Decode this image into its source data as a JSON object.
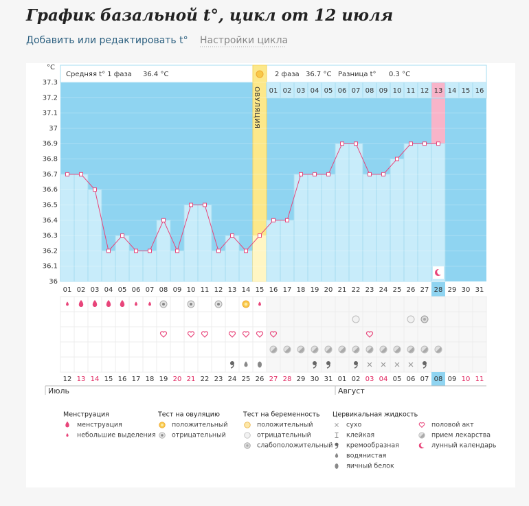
{
  "header": {
    "title": "График базальной t°, цикл от 12 июля",
    "links": [
      "Добавить или редактировать t°",
      "Настройки цикла"
    ]
  },
  "chart": {
    "unit": "°C",
    "ylim": [
      36,
      37.3
    ],
    "yticks": [
      36,
      36.1,
      36.2,
      36.3,
      36.4,
      36.5,
      36.6,
      36.7,
      36.8,
      36.9,
      37,
      37.1,
      37.2,
      37.3
    ],
    "phase1": {
      "label": "Средняя t° 1 фаза",
      "value": "36.4 °C"
    },
    "phase2": {
      "label": "2 фаза",
      "value": "36.7 °C"
    },
    "difference": {
      "label": "Разница t°",
      "value": "0.3 °C"
    },
    "ovulation_label": "ОВУЛЯЦИЯ",
    "ovulation_day": "15",
    "today": "28",
    "cycle_days": [
      "01",
      "02",
      "03",
      "04",
      "05",
      "06",
      "07",
      "08",
      "09",
      "10",
      "11",
      "12",
      "13",
      "14",
      "15",
      "16",
      "17",
      "18",
      "19",
      "20",
      "21",
      "22",
      "23",
      "24",
      "25",
      "26",
      "27",
      "28",
      "29",
      "30",
      "31"
    ],
    "phase2_days": [
      "01",
      "02",
      "03",
      "04",
      "05",
      "06",
      "07",
      "08",
      "09",
      "10",
      "11",
      "12",
      "13",
      "14",
      "15",
      "16"
    ],
    "temperatures": [
      36.7,
      36.7,
      36.6,
      36.2,
      36.3,
      36.2,
      36.2,
      36.4,
      36.2,
      36.5,
      36.5,
      36.2,
      36.3,
      36.2,
      36.3,
      36.4,
      36.4,
      36.7,
      36.7,
      36.7,
      36.9,
      36.9,
      36.7,
      36.7,
      36.8,
      36.9,
      36.9,
      36.9,
      null,
      null,
      null
    ],
    "symbol_rows": [
      [
        "spotting",
        "menstruation",
        "menstruation",
        "menstruation",
        "menstruation",
        "spotting",
        "spotting",
        "ovulation-negative",
        null,
        "ovulation-negative",
        null,
        "ovulation-negative",
        null,
        "ovulation-positive",
        "spotting",
        null,
        null,
        null,
        null,
        null,
        null,
        null,
        null,
        null,
        null,
        null,
        null,
        null,
        null,
        null,
        null
      ],
      [
        null,
        null,
        null,
        null,
        null,
        null,
        null,
        null,
        null,
        null,
        null,
        null,
        null,
        null,
        null,
        null,
        null,
        null,
        null,
        null,
        null,
        "pregnancy-negative",
        null,
        null,
        null,
        "pregnancy-negative",
        "pregnancy-weak",
        null,
        null,
        null,
        null
      ],
      [
        null,
        null,
        null,
        null,
        null,
        null,
        null,
        "intercourse",
        null,
        "intercourse",
        "intercourse",
        null,
        "intercourse",
        "intercourse",
        "intercourse",
        "intercourse",
        null,
        null,
        null,
        null,
        null,
        null,
        "intercourse",
        null,
        null,
        null,
        null,
        null,
        null,
        null,
        null
      ],
      [
        null,
        null,
        null,
        null,
        null,
        null,
        null,
        null,
        null,
        null,
        null,
        null,
        null,
        null,
        null,
        "medication",
        "medication",
        "medication",
        "medication",
        "medication",
        "medication",
        "medication",
        "medication",
        "medication",
        "medication",
        "medication",
        "medication",
        "medication",
        null,
        null,
        null
      ],
      [
        null,
        null,
        null,
        null,
        null,
        null,
        null,
        null,
        null,
        null,
        null,
        null,
        "creamy",
        "watery",
        "egg-white",
        null,
        null,
        null,
        "creamy",
        "creamy",
        null,
        "creamy",
        "dry",
        "dry",
        "dry",
        "dry",
        "creamy",
        null,
        null,
        null,
        null
      ]
    ],
    "dates": [
      {
        "label": "12",
        "weekend": false
      },
      {
        "label": "13",
        "weekend": true
      },
      {
        "label": "14",
        "weekend": true
      },
      {
        "label": "15",
        "weekend": false
      },
      {
        "label": "16",
        "weekend": false
      },
      {
        "label": "17",
        "weekend": false
      },
      {
        "label": "18",
        "weekend": false
      },
      {
        "label": "19",
        "weekend": false
      },
      {
        "label": "20",
        "weekend": true
      },
      {
        "label": "21",
        "weekend": true
      },
      {
        "label": "22",
        "weekend": false
      },
      {
        "label": "23",
        "weekend": false
      },
      {
        "label": "24",
        "weekend": false
      },
      {
        "label": "25",
        "weekend": false
      },
      {
        "label": "26",
        "weekend": false
      },
      {
        "label": "27",
        "weekend": true
      },
      {
        "label": "28",
        "weekend": true
      },
      {
        "label": "29",
        "weekend": false
      },
      {
        "label": "30",
        "weekend": false
      },
      {
        "label": "31",
        "weekend": false
      },
      {
        "label": "01",
        "weekend": false
      },
      {
        "label": "02",
        "weekend": false
      },
      {
        "label": "03",
        "weekend": true
      },
      {
        "label": "04",
        "weekend": true
      },
      {
        "label": "05",
        "weekend": false
      },
      {
        "label": "06",
        "weekend": false
      },
      {
        "label": "07",
        "weekend": false
      },
      {
        "label": "08",
        "weekend": false
      },
      {
        "label": "09",
        "weekend": false
      },
      {
        "label": "10",
        "weekend": true
      },
      {
        "label": "11",
        "weekend": true
      }
    ],
    "months": [
      "Июль",
      "Август"
    ]
  },
  "legend": [
    {
      "title": "Менструация",
      "items": [
        {
          "icon": "menstruation",
          "label": "менструация"
        },
        {
          "icon": "spotting",
          "label": "небольшие выделения"
        }
      ]
    },
    {
      "title": "Тест на овуляцию",
      "items": [
        {
          "icon": "ovulation-positive",
          "label": "положительный"
        },
        {
          "icon": "ovulation-negative",
          "label": "отрицательный"
        }
      ]
    },
    {
      "title": "Тест на беременность",
      "items": [
        {
          "icon": "pregnancy-positive",
          "label": "положительный"
        },
        {
          "icon": "pregnancy-negative",
          "label": "отрицательный"
        },
        {
          "icon": "pregnancy-weak",
          "label": "слабоположительный"
        }
      ]
    },
    {
      "title": "Цервикальная жидкость",
      "items": [
        {
          "icon": "dry",
          "label": "сухо"
        },
        {
          "icon": "sticky",
          "label": "клейкая"
        },
        {
          "icon": "creamy",
          "label": "кремообразная"
        },
        {
          "icon": "watery",
          "label": "водянистая"
        },
        {
          "icon": "egg-white",
          "label": "яичный белок"
        }
      ]
    },
    {
      "items": [
        {
          "icon": "intercourse",
          "label": "половой акт"
        },
        {
          "icon": "medication",
          "label": "прием лекарства"
        },
        {
          "icon": "lunar",
          "label": "лунный календарь"
        }
      ]
    }
  ]
}
